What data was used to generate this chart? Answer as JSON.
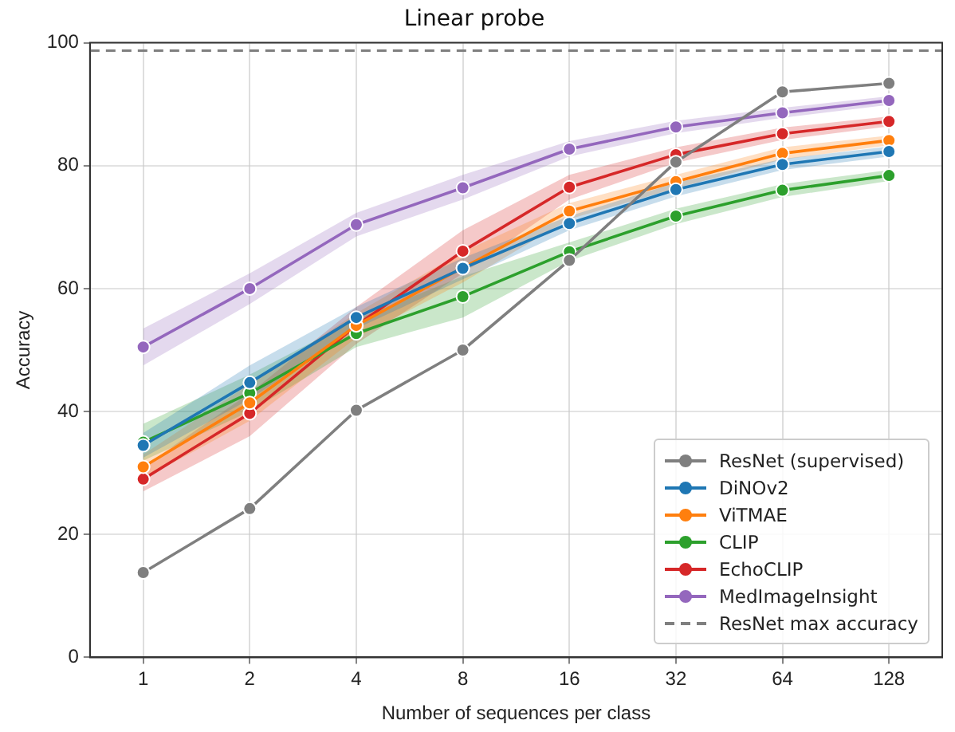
{
  "chart_data": {
    "type": "line",
    "title": "Linear probe",
    "xlabel": "Number of sequences per class",
    "ylabel": "Accuracy",
    "categories": [
      "1",
      "2",
      "4",
      "8",
      "16",
      "32",
      "64",
      "128"
    ],
    "ylim": [
      0,
      100
    ],
    "yticks": [
      0,
      20,
      40,
      60,
      80,
      100
    ],
    "grid": true,
    "legend": "bottom right",
    "marker": "circle",
    "line_style": "solid",
    "series": [
      {
        "name": "ResNet (supervised)",
        "color": "#7f7f7f",
        "values": [
          13.8,
          24.2,
          40.2,
          50,
          64.6,
          80.6,
          92,
          93.4
        ]
      },
      {
        "name": "DiNOv2",
        "color": "#1f77b4",
        "values": [
          34.5,
          44.7,
          55.3,
          63.3,
          70.6,
          76.1,
          80.2,
          82.3
        ],
        "lower": [
          32.5,
          42,
          53.5,
          61.5,
          69.5,
          75,
          79.3,
          81.5
        ],
        "upper": [
          36.5,
          47.5,
          57,
          65,
          71.8,
          77.2,
          81.1,
          83.1
        ]
      },
      {
        "name": "ViTMAE",
        "color": "#ff7f0e",
        "values": [
          31,
          41.4,
          54,
          63.4,
          72.6,
          77.4,
          82,
          84.1
        ],
        "lower": [
          29,
          38.5,
          52,
          61,
          71.3,
          76.3,
          81,
          83.3
        ],
        "upper": [
          33,
          44.5,
          56,
          66,
          73.9,
          78.5,
          83,
          84.9
        ]
      },
      {
        "name": "CLIP",
        "color": "#2ca02c",
        "values": [
          35,
          43,
          52.7,
          58.7,
          66,
          71.8,
          76,
          78.4
        ],
        "lower": [
          32,
          40,
          50.5,
          55.3,
          64.5,
          70.5,
          74.9,
          77.5
        ],
        "upper": [
          38,
          46,
          55,
          62,
          67.5,
          73,
          77,
          79.3
        ]
      },
      {
        "name": "EchoCLIP",
        "color": "#d62728",
        "values": [
          29,
          39.7,
          54,
          66.1,
          76.5,
          81.8,
          85.2,
          87.2
        ],
        "lower": [
          27,
          36,
          51,
          62.5,
          74.5,
          80.5,
          84.2,
          86.4
        ],
        "upper": [
          31,
          43,
          57,
          69.5,
          78.5,
          83,
          86.2,
          88
        ]
      },
      {
        "name": "MedImageInsight",
        "color": "#9467bd",
        "values": [
          50.5,
          60,
          70.4,
          76.4,
          82.7,
          86.3,
          88.6,
          90.6
        ],
        "lower": [
          47.5,
          57.5,
          68.5,
          74.5,
          81.5,
          85.3,
          87.8,
          89.9
        ],
        "upper": [
          53.5,
          62.5,
          72.3,
          78.5,
          84,
          87.3,
          89.4,
          91.3
        ]
      }
    ],
    "ref_lines": [
      {
        "axis": "y",
        "value": 98.7,
        "label": "ResNet max accuracy",
        "color": "#7f7f7f",
        "line_style": "dashed"
      }
    ]
  }
}
